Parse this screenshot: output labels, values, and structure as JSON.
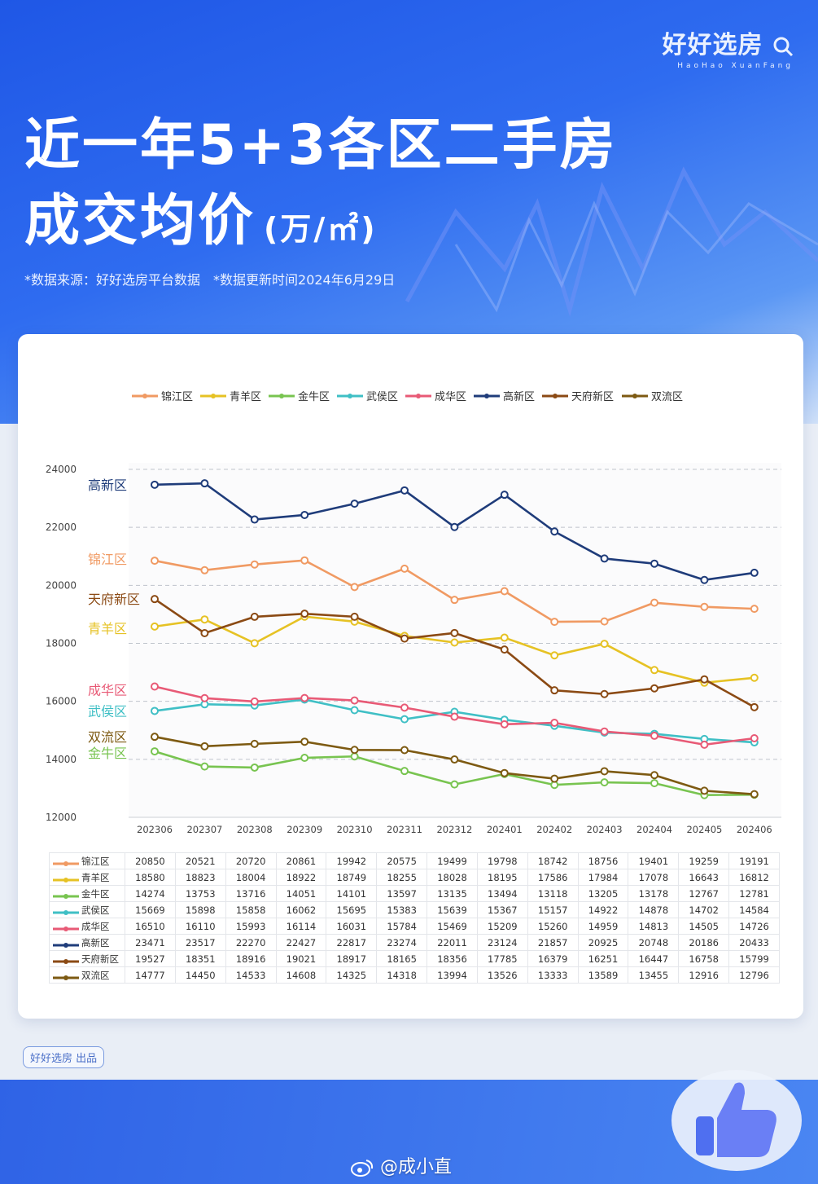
{
  "brand": {
    "name": "好好选房",
    "sub": "HaoHao XuanFang"
  },
  "title": {
    "line1": "近一年5+3各区二手房",
    "line2": "成交均价",
    "unit": "(万/㎡)"
  },
  "note": {
    "source": "*数据来源：好好选房平台数据",
    "updated": "*数据更新时间2024年6月29日"
  },
  "producer": "好好选房 出品",
  "watermark": "@成小直",
  "icons": [
    "weibo-icon",
    "thumbs-up-icon",
    "search-logo-icon"
  ],
  "chart_data": {
    "type": "line",
    "x": [
      "202306",
      "202307",
      "202308",
      "202309",
      "202310",
      "202311",
      "202312",
      "202401",
      "202402",
      "202403",
      "202404",
      "202405",
      "202406"
    ],
    "ylim": [
      12000,
      24000
    ],
    "yticks": [
      12000,
      14000,
      16000,
      18000,
      20000,
      22000,
      24000
    ],
    "grid": "horizontal-dashed",
    "legend_position": "top",
    "series": [
      {
        "name": "锦江区",
        "color": "#f09a63",
        "values": [
          20850,
          20521,
          20720,
          20861,
          19942,
          20575,
          19499,
          19798,
          18742,
          18756,
          19401,
          19259,
          19191
        ]
      },
      {
        "name": "青羊区",
        "color": "#e6c224",
        "values": [
          18580,
          18823,
          18004,
          18922,
          18749,
          18255,
          18028,
          18195,
          17586,
          17984,
          17078,
          16643,
          16812
        ]
      },
      {
        "name": "金牛区",
        "color": "#78c450",
        "values": [
          14274,
          13753,
          13716,
          14051,
          14101,
          13597,
          13135,
          13494,
          13118,
          13205,
          13178,
          12767,
          12781
        ]
      },
      {
        "name": "武侯区",
        "color": "#3fbfc5",
        "values": [
          15669,
          15898,
          15858,
          16062,
          15695,
          15383,
          15639,
          15367,
          15157,
          14922,
          14878,
          14702,
          14584
        ]
      },
      {
        "name": "成华区",
        "color": "#e85a76",
        "values": [
          16510,
          16110,
          15993,
          16114,
          16031,
          15784,
          15469,
          15209,
          15260,
          14959,
          14813,
          14505,
          14726
        ]
      },
      {
        "name": "高新区",
        "color": "#1f3c7a",
        "values": [
          23471,
          23517,
          22270,
          22427,
          22817,
          23274,
          22011,
          23124,
          21857,
          20925,
          20748,
          20186,
          20433
        ]
      },
      {
        "name": "天府新区",
        "color": "#8b4a14",
        "values": [
          19527,
          18351,
          18916,
          19021,
          18917,
          18165,
          18356,
          17785,
          16379,
          16251,
          16447,
          16758,
          15799
        ]
      },
      {
        "name": "双流区",
        "color": "#7d5a12",
        "values": [
          14777,
          14450,
          14533,
          14608,
          14325,
          14318,
          13994,
          13526,
          13333,
          13589,
          13455,
          12916,
          12796
        ]
      }
    ],
    "line_labels": [
      {
        "series": "高新区",
        "value": 23471
      },
      {
        "series": "锦江区",
        "value": 20850
      },
      {
        "series": "天府新区",
        "value": 19527
      },
      {
        "series": "青羊区",
        "value": 18580
      },
      {
        "series": "成华区",
        "value": 16510
      },
      {
        "series": "武侯区",
        "value": 15669
      },
      {
        "series": "双流区",
        "value": 14777
      },
      {
        "series": "金牛区",
        "value": 14274
      }
    ]
  }
}
